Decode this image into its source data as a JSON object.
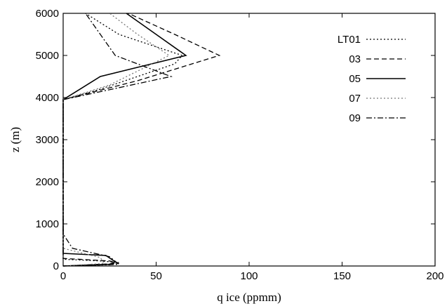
{
  "chart_data": {
    "type": "line",
    "xlabel": "q ice (ppmm)",
    "ylabel": "z (m)",
    "xlim": [
      0,
      200
    ],
    "ylim": [
      0,
      6000
    ],
    "xticks": [
      0,
      50,
      100,
      150,
      200
    ],
    "yticks": [
      0,
      1000,
      2000,
      3000,
      4000,
      5000,
      6000
    ],
    "grid": false,
    "legend_position": "top-right",
    "series": [
      {
        "name": "LT01",
        "color": "#000000",
        "dash": "dotted",
        "points": [
          [
            0,
            0
          ],
          [
            25,
            30
          ],
          [
            30,
            80
          ],
          [
            20,
            120
          ],
          [
            0,
            160
          ],
          [
            0,
            3950
          ],
          [
            20,
            4200
          ],
          [
            60,
            4800
          ],
          [
            64,
            5000
          ],
          [
            30,
            5500
          ],
          [
            12,
            6000
          ]
        ]
      },
      {
        "name": "03",
        "color": "#000000",
        "dash": "dashed",
        "points": [
          [
            0,
            0
          ],
          [
            30,
            60
          ],
          [
            25,
            120
          ],
          [
            0,
            180
          ],
          [
            0,
            3950
          ],
          [
            40,
            4400
          ],
          [
            84,
            5000
          ],
          [
            60,
            5500
          ],
          [
            35,
            6000
          ]
        ]
      },
      {
        "name": "05",
        "color": "#000000",
        "dash": "solid",
        "points": [
          [
            0,
            0
          ],
          [
            25,
            40
          ],
          [
            28,
            100
          ],
          [
            23,
            250
          ],
          [
            0,
            300
          ],
          [
            0,
            3950
          ],
          [
            20,
            4500
          ],
          [
            66,
            5000
          ],
          [
            50,
            5500
          ],
          [
            34,
            6000
          ]
        ]
      },
      {
        "name": "07",
        "color": "#777777",
        "dash": "dotted",
        "points": [
          [
            0,
            0
          ],
          [
            22,
            60
          ],
          [
            20,
            200
          ],
          [
            0,
            420
          ],
          [
            0,
            3950
          ],
          [
            25,
            4300
          ],
          [
            57,
            5000
          ],
          [
            40,
            5500
          ],
          [
            25,
            6000
          ]
        ]
      },
      {
        "name": "09",
        "color": "#000000",
        "dash": "dashdot",
        "points": [
          [
            0,
            0
          ],
          [
            30,
            40
          ],
          [
            25,
            220
          ],
          [
            5,
            420
          ],
          [
            0,
            760
          ],
          [
            0,
            3950
          ],
          [
            58,
            4500
          ],
          [
            28,
            5000
          ],
          [
            12,
            6000
          ]
        ]
      }
    ]
  }
}
